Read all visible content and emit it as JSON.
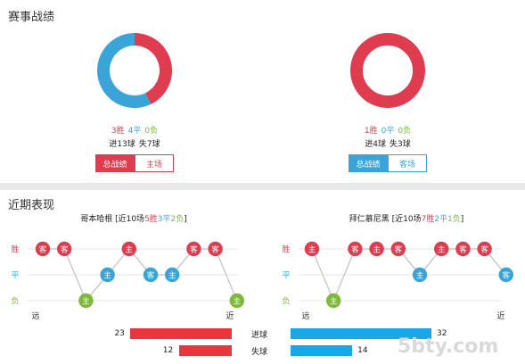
{
  "sections": {
    "record_title": "赛事战绩",
    "recent_title": "近期表现"
  },
  "teams": [
    {
      "record": {
        "wins": 3,
        "draws": 4,
        "losses": 0,
        "win_label": "3胜",
        "draw_label": "4平",
        "loss_label": "0负",
        "goals_label": "进13球",
        "conceded_label": "失7球"
      },
      "tabs": [
        {
          "label": "总战绩",
          "active": true
        },
        {
          "label": "主场",
          "active": false
        }
      ],
      "accent": "#e03c4f",
      "form_title": {
        "name": "哥本哈根",
        "open": " [近10场",
        "w": "5胜",
        "d": "3平",
        "l": "2负",
        "close": "]"
      },
      "form": [
        {
          "result": "W",
          "venue": "客"
        },
        {
          "result": "W",
          "venue": "客"
        },
        {
          "result": "L",
          "venue": "主"
        },
        {
          "result": "D",
          "venue": "主"
        },
        {
          "result": "W",
          "venue": "主"
        },
        {
          "result": "D",
          "venue": "客"
        },
        {
          "result": "D",
          "venue": "主"
        },
        {
          "result": "W",
          "venue": "客"
        },
        {
          "result": "W",
          "venue": "客"
        },
        {
          "result": "L",
          "venue": "主"
        }
      ]
    },
    {
      "record": {
        "wins": 1,
        "draws": 0,
        "losses": 0,
        "win_label": "1胜",
        "draw_label": "0平",
        "loss_label": "0负",
        "goals_label": "进4球",
        "conceded_label": "失3球"
      },
      "tabs": [
        {
          "label": "总战绩",
          "active": true
        },
        {
          "label": "客场",
          "active": false
        }
      ],
      "accent": "#3aa3d8",
      "form_title": {
        "name": "拜仁慕尼黑",
        "open": " [近10场",
        "w": "7胜",
        "d": "2平",
        "l": "1负",
        "close": "]"
      },
      "form": [
        {
          "result": "W",
          "venue": "主"
        },
        {
          "result": "L",
          "venue": "主"
        },
        {
          "result": "W",
          "venue": "客"
        },
        {
          "result": "W",
          "venue": "主"
        },
        {
          "result": "W",
          "venue": "客"
        },
        {
          "result": "D",
          "venue": "主"
        },
        {
          "result": "W",
          "venue": "主"
        },
        {
          "result": "W",
          "venue": "客"
        },
        {
          "result": "W",
          "venue": "客"
        },
        {
          "result": "D",
          "venue": "客"
        }
      ]
    }
  ],
  "axis": {
    "win": "胜",
    "draw": "平",
    "loss": "负",
    "far": "远",
    "near": "近"
  },
  "comparison": [
    {
      "label": "进球",
      "left": 23,
      "right": 32
    },
    {
      "label": "失球",
      "left": 12,
      "right": 14
    }
  ],
  "colors": {
    "win": "#e03c4f",
    "draw": "#3aa3d8",
    "loss": "#7cb83a",
    "left_bar": "#e8363f",
    "right_bar": "#1aa7e8"
  },
  "watermark": "5bty.com"
}
